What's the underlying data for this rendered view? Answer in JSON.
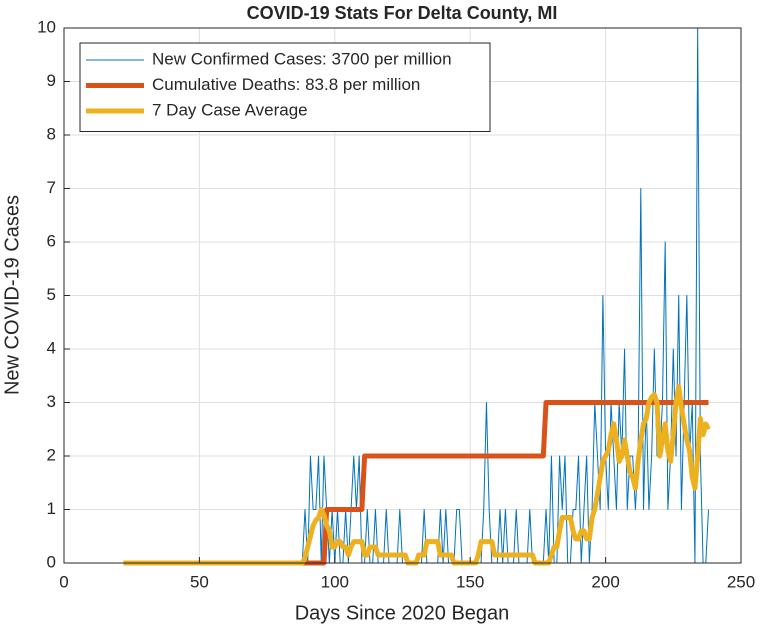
{
  "chart_data": {
    "type": "line",
    "title": "COVID-19 Stats For Delta County, MI",
    "xlabel": "Days Since 2020 Began",
    "ylabel": "New COVID-19 Cases",
    "xlim": [
      0,
      250
    ],
    "xticks": [
      0,
      50,
      100,
      150,
      200,
      250
    ],
    "ylim": [
      0,
      10
    ],
    "yticks": [
      0,
      1,
      2,
      3,
      4,
      5,
      6,
      7,
      8,
      9,
      10
    ],
    "grid": true,
    "legend": "upper left",
    "x": [
      22,
      23,
      24,
      25,
      26,
      27,
      28,
      29,
      30,
      31,
      32,
      33,
      34,
      35,
      36,
      37,
      38,
      39,
      40,
      41,
      42,
      43,
      44,
      45,
      46,
      47,
      48,
      49,
      50,
      51,
      52,
      53,
      54,
      55,
      56,
      57,
      58,
      59,
      60,
      61,
      62,
      63,
      64,
      65,
      66,
      67,
      68,
      69,
      70,
      71,
      72,
      73,
      74,
      75,
      76,
      77,
      78,
      79,
      80,
      81,
      82,
      83,
      84,
      85,
      86,
      87,
      88,
      89,
      90,
      91,
      92,
      93,
      94,
      95,
      96,
      97,
      98,
      99,
      100,
      101,
      102,
      103,
      104,
      105,
      106,
      107,
      108,
      109,
      110,
      111,
      112,
      113,
      114,
      115,
      116,
      117,
      118,
      119,
      120,
      121,
      122,
      123,
      124,
      125,
      126,
      127,
      128,
      129,
      130,
      131,
      132,
      133,
      134,
      135,
      136,
      137,
      138,
      139,
      140,
      141,
      142,
      143,
      144,
      145,
      146,
      147,
      148,
      149,
      150,
      151,
      152,
      153,
      154,
      155,
      156,
      157,
      158,
      159,
      160,
      161,
      162,
      163,
      164,
      165,
      166,
      167,
      168,
      169,
      170,
      171,
      172,
      173,
      174,
      175,
      176,
      177,
      178,
      179,
      180,
      181,
      182,
      183,
      184,
      185,
      186,
      187,
      188,
      189,
      190,
      191,
      192,
      193,
      194,
      195,
      196,
      197,
      198,
      199,
      200,
      201,
      202,
      203,
      204,
      205,
      206,
      207,
      208,
      209,
      210,
      211,
      212,
      213,
      214,
      215,
      216,
      217,
      218,
      219,
      220,
      221,
      222,
      223,
      224,
      225,
      226,
      227,
      228,
      229,
      230,
      231,
      232,
      233,
      234,
      235,
      236,
      237,
      238
    ],
    "series": [
      {
        "name": "New Confirmed Cases: 3700 per million",
        "color": "#0072BD",
        "width": 1,
        "values": [
          0,
          0,
          0,
          0,
          0,
          0,
          0,
          0,
          0,
          0,
          0,
          0,
          0,
          0,
          0,
          0,
          0,
          0,
          0,
          0,
          0,
          0,
          0,
          0,
          0,
          0,
          0,
          0,
          0,
          0,
          0,
          0,
          0,
          0,
          0,
          0,
          0,
          0,
          0,
          0,
          0,
          0,
          0,
          0,
          0,
          0,
          0,
          0,
          0,
          0,
          0,
          0,
          0,
          0,
          0,
          0,
          0,
          0,
          0,
          0,
          0,
          0,
          0,
          0,
          0,
          0,
          0,
          1,
          0,
          2,
          1,
          1,
          2,
          0,
          2,
          1,
          0,
          1,
          0,
          1,
          0,
          0,
          1,
          0,
          1,
          2,
          1,
          2,
          0,
          0,
          1,
          0,
          0,
          1,
          0,
          0,
          0,
          1,
          0,
          0,
          0,
          0,
          1,
          0,
          0,
          0,
          0,
          0,
          0,
          0,
          0,
          1,
          0,
          0,
          0,
          0,
          0,
          1,
          0,
          1,
          0,
          0,
          0,
          1,
          1,
          0,
          0,
          0,
          0,
          0,
          0,
          0,
          0,
          1,
          3,
          1,
          0,
          0,
          0,
          1,
          0,
          1,
          0,
          0,
          0,
          1,
          0,
          0,
          0,
          0,
          1,
          0,
          0,
          0,
          0,
          0,
          1,
          0,
          2,
          0,
          0,
          2,
          1,
          2,
          0,
          0,
          1,
          1,
          2,
          0,
          1,
          2,
          0,
          1,
          3,
          2,
          1,
          5,
          2,
          1,
          3,
          2,
          1,
          3,
          2,
          4,
          1,
          2,
          2,
          1,
          2,
          7,
          1,
          3,
          1,
          2,
          4,
          2,
          2,
          3,
          6,
          1,
          2,
          4,
          2,
          5,
          1,
          3,
          5,
          2,
          3,
          0,
          10,
          2,
          0,
          0,
          1
        ]
      },
      {
        "name": "Cumulative Deaths: 83.8 per million",
        "color": "#D95319",
        "width": 5,
        "values": [
          0,
          0,
          0,
          0,
          0,
          0,
          0,
          0,
          0,
          0,
          0,
          0,
          0,
          0,
          0,
          0,
          0,
          0,
          0,
          0,
          0,
          0,
          0,
          0,
          0,
          0,
          0,
          0,
          0,
          0,
          0,
          0,
          0,
          0,
          0,
          0,
          0,
          0,
          0,
          0,
          0,
          0,
          0,
          0,
          0,
          0,
          0,
          0,
          0,
          0,
          0,
          0,
          0,
          0,
          0,
          0,
          0,
          0,
          0,
          0,
          0,
          0,
          0,
          0,
          0,
          0,
          0,
          0,
          0,
          0,
          0,
          0,
          0,
          0,
          0,
          1,
          1,
          1,
          1,
          1,
          1,
          1,
          1,
          1,
          1,
          1,
          1,
          1,
          1,
          2,
          2,
          2,
          2,
          2,
          2,
          2,
          2,
          2,
          2,
          2,
          2,
          2,
          2,
          2,
          2,
          2,
          2,
          2,
          2,
          2,
          2,
          2,
          2,
          2,
          2,
          2,
          2,
          2,
          2,
          2,
          2,
          2,
          2,
          2,
          2,
          2,
          2,
          2,
          2,
          2,
          2,
          2,
          2,
          2,
          2,
          2,
          2,
          2,
          2,
          2,
          2,
          2,
          2,
          2,
          2,
          2,
          2,
          2,
          2,
          2,
          2,
          2,
          2,
          2,
          2,
          2,
          3,
          3,
          3,
          3,
          3,
          3,
          3,
          3,
          3,
          3,
          3,
          3,
          3,
          3,
          3,
          3,
          3,
          3,
          3,
          3,
          3,
          3,
          3,
          3,
          3,
          3,
          3,
          3,
          3,
          3,
          3,
          3,
          3,
          3,
          3,
          3,
          3,
          3,
          3,
          3,
          3,
          3,
          3,
          3,
          3,
          3,
          3,
          3,
          3,
          3,
          3,
          3,
          3,
          3,
          3,
          3,
          3,
          3,
          3,
          3,
          3
        ]
      },
      {
        "name": "7 Day Case Average",
        "color": "#EDB120",
        "width": 5,
        "values": [
          0,
          0,
          0,
          0,
          0,
          0,
          0,
          0,
          0,
          0,
          0,
          0,
          0,
          0,
          0,
          0,
          0,
          0,
          0,
          0,
          0,
          0,
          0,
          0,
          0,
          0,
          0,
          0,
          0,
          0,
          0,
          0,
          0,
          0,
          0,
          0,
          0,
          0,
          0,
          0,
          0,
          0,
          0,
          0,
          0,
          0,
          0,
          0,
          0,
          0,
          0,
          0,
          0,
          0,
          0,
          0,
          0,
          0,
          0,
          0,
          0,
          0,
          0,
          0,
          0,
          0,
          0,
          0.1,
          0.3,
          0.5,
          0.7,
          0.8,
          0.85,
          1,
          0.9,
          0.7,
          0.6,
          0.3,
          0.3,
          0.4,
          0.4,
          0.3,
          0.3,
          0.15,
          0.3,
          0.4,
          0.4,
          0.4,
          0.4,
          0.15,
          0.15,
          0.3,
          0.3,
          0.3,
          0.15,
          0.15,
          0.15,
          0.15,
          0.15,
          0.15,
          0.15,
          0.15,
          0.15,
          0.15,
          0.15,
          0,
          0,
          0,
          0,
          0.15,
          0.15,
          0.15,
          0.4,
          0.4,
          0.4,
          0.4,
          0.4,
          0.15,
          0.15,
          0.15,
          0.15,
          0.15,
          0,
          0,
          0,
          0,
          0,
          0,
          0,
          0,
          0,
          0.15,
          0.4,
          0.4,
          0.4,
          0.4,
          0.4,
          0.15,
          0.15,
          0.15,
          0.15,
          0.15,
          0.15,
          0.15,
          0.15,
          0.15,
          0.15,
          0.15,
          0.15,
          0.15,
          0.15,
          0.15,
          0,
          0,
          0,
          0,
          0,
          0,
          0.15,
          0.3,
          0.3,
          0.6,
          0.85,
          0.85,
          0.85,
          0.85,
          0.6,
          0.45,
          0.45,
          0.6,
          0.6,
          0.45,
          0.45,
          0.85,
          1,
          1.3,
          1.6,
          1.9,
          2,
          2.1,
          2.4,
          2.6,
          2.3,
          1.9,
          2,
          2.3,
          2,
          1.7,
          1.6,
          1.4,
          1.9,
          2.3,
          2.6,
          2.7,
          3,
          3.1,
          3.15,
          3,
          2,
          2.3,
          2.6,
          2.1,
          1.9,
          2.4,
          3,
          3.3,
          2.9,
          2.6,
          2.3,
          2.1,
          1.6,
          1.4,
          2,
          2.7,
          2.4,
          2.6,
          2.5
        ]
      }
    ]
  }
}
